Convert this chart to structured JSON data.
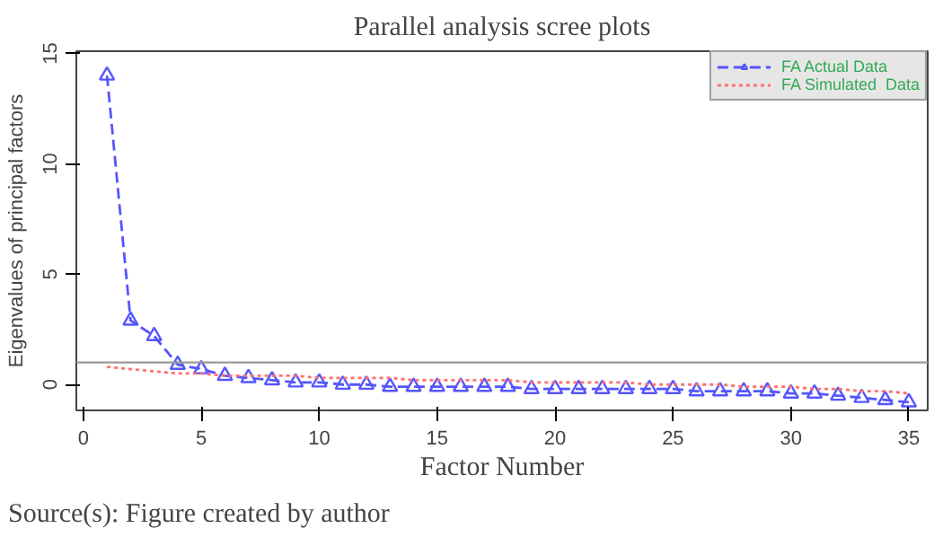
{
  "chart_data": {
    "type": "line",
    "title": "Parallel analysis scree plots",
    "xlabel": "Factor Number",
    "ylabel": "Eigenvalues of principal factors",
    "x": [
      1,
      2,
      3,
      4,
      5,
      6,
      7,
      8,
      9,
      10,
      11,
      12,
      13,
      14,
      15,
      16,
      17,
      18,
      19,
      20,
      21,
      22,
      23,
      24,
      25,
      26,
      27,
      28,
      29,
      30,
      31,
      32,
      33,
      34,
      35
    ],
    "series": [
      {
        "name": "FA Actual Data",
        "color": "#5555ff",
        "marker": "triangle",
        "line_style": "dashed",
        "values": [
          14,
          2.9,
          2.2,
          0.9,
          0.7,
          0.4,
          0.3,
          0.2,
          0.1,
          0.1,
          0,
          0,
          -0.1,
          -0.1,
          -0.1,
          -0.1,
          -0.1,
          -0.1,
          -0.2,
          -0.2,
          -0.2,
          -0.2,
          -0.2,
          -0.2,
          -0.2,
          -0.3,
          -0.3,
          -0.3,
          -0.3,
          -0.4,
          -0.4,
          -0.5,
          -0.6,
          -0.7,
          -0.8
        ]
      },
      {
        "name": "FA Simulated  Data",
        "color": "#ff7070",
        "marker": "none",
        "line_style": "dotted",
        "values": [
          0.8,
          0.7,
          0.6,
          0.5,
          0.5,
          0.4,
          0.4,
          0.4,
          0.4,
          0.3,
          0.3,
          0.3,
          0.3,
          0.2,
          0.2,
          0.2,
          0.2,
          0.2,
          0.1,
          0.1,
          0.1,
          0.1,
          0.1,
          0,
          0,
          0,
          0,
          -0.1,
          -0.1,
          -0.1,
          -0.2,
          -0.2,
          -0.3,
          -0.3,
          -0.4
        ]
      }
    ],
    "xlim": [
      -0.3,
      35.8
    ],
    "ylim": [
      -1.17,
      15.1
    ],
    "xticks": [
      0,
      5,
      10,
      15,
      20,
      25,
      30,
      35
    ],
    "yticks": [
      0,
      5,
      10,
      15
    ],
    "ref_lines": [
      {
        "axis": "y",
        "value": 1,
        "color": "#999999",
        "line_style": "solid"
      }
    ],
    "legend": "top right",
    "grid": false,
    "annotations": [
      "Source(s): Figure created by author"
    ]
  }
}
